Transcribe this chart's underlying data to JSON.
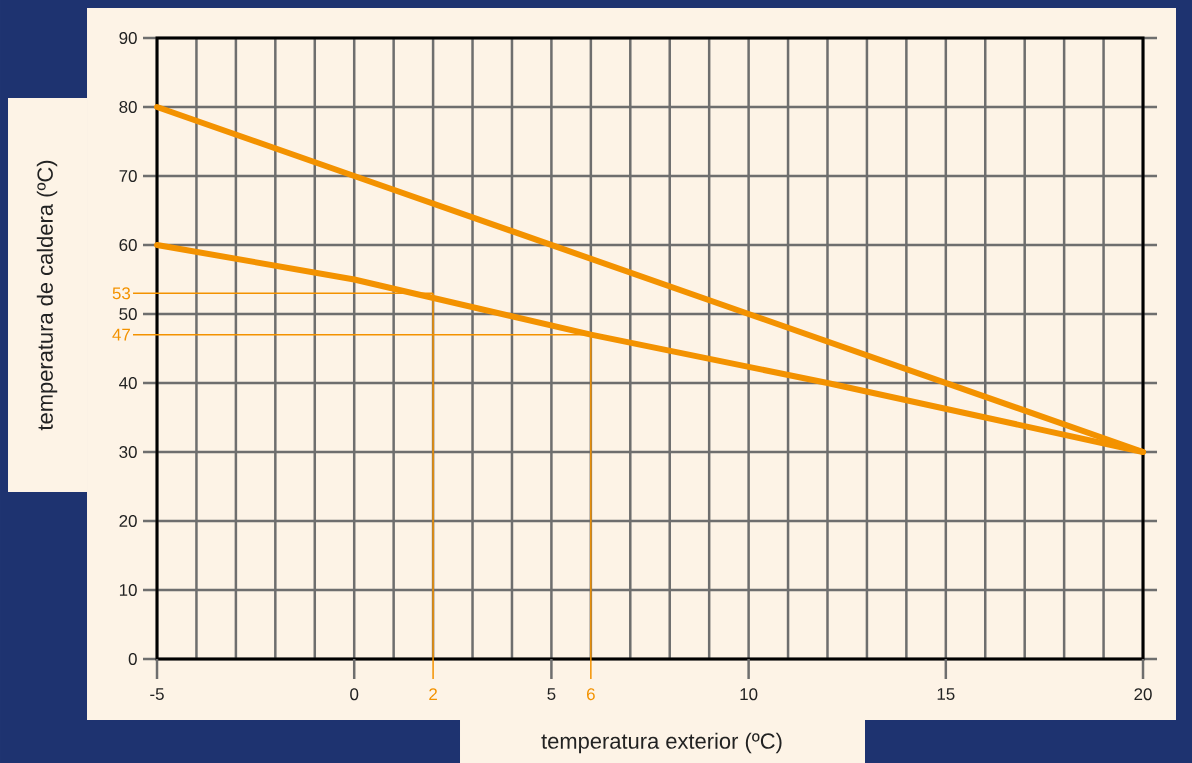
{
  "chart_data": {
    "type": "line",
    "xlabel": "temperatura exterior (ºC)",
    "ylabel": "temperatura de caldera (ºC)",
    "xlim": [
      -5,
      20
    ],
    "ylim": [
      0,
      90
    ],
    "xticks": [
      -5,
      {
        "value": -4,
        "label": null
      },
      {
        "value": -3,
        "label": null
      },
      {
        "value": -2,
        "label": null
      },
      {
        "value": -1,
        "label": null
      },
      0,
      {
        "value": 1,
        "label": null
      },
      {
        "value": 2,
        "label": null
      },
      {
        "value": 3,
        "label": null
      },
      {
        "value": 4,
        "label": null
      },
      5,
      {
        "value": 6,
        "label": null
      },
      {
        "value": 7,
        "label": null
      },
      {
        "value": 8,
        "label": null
      },
      {
        "value": 9,
        "label": null
      },
      10,
      {
        "value": 11,
        "label": null
      },
      {
        "value": 12,
        "label": null
      },
      {
        "value": 13,
        "label": null
      },
      {
        "value": 14,
        "label": null
      },
      15,
      {
        "value": 16,
        "label": null
      },
      {
        "value": 17,
        "label": null
      },
      {
        "value": 18,
        "label": null
      },
      {
        "value": 19,
        "label": null
      },
      20
    ],
    "yticks": [
      0,
      10,
      20,
      30,
      40,
      50,
      60,
      70,
      80,
      90
    ],
    "grid": true,
    "series": [
      {
        "color": "#f39200",
        "x": [
          -5,
          0,
          5,
          10,
          15,
          20
        ],
        "values": [
          80,
          70,
          60,
          50,
          40,
          30
        ]
      },
      {
        "color": "#f39200",
        "x": [
          -5,
          0,
          6,
          12,
          20
        ],
        "values": [
          60,
          55,
          47,
          40,
          30
        ]
      }
    ],
    "ref_lines": [
      {
        "axis": "y",
        "value": 53,
        "label": "53",
        "color": "#f39200"
      },
      {
        "axis": "y",
        "value": 47,
        "label": "47",
        "color": "#f39200"
      },
      {
        "axis": "x",
        "value": 2,
        "label": "2",
        "color": "#f39200"
      },
      {
        "axis": "x",
        "value": 6,
        "label": "6",
        "color": "#f39200"
      }
    ]
  }
}
